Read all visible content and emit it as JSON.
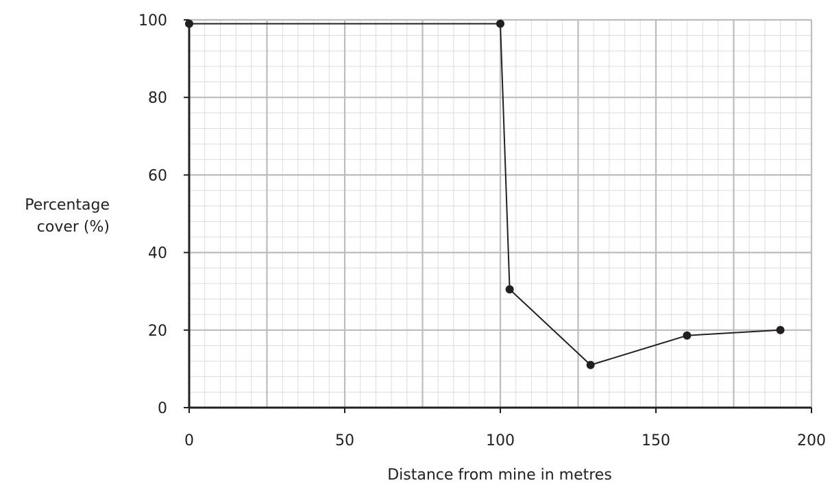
{
  "chart_data": {
    "type": "line",
    "title": "",
    "xlabel": "Distance from mine in metres",
    "ylabel_lines": [
      "Percentage",
      "cover (%)"
    ],
    "xlim": [
      0,
      200
    ],
    "ylim": [
      0,
      100
    ],
    "x_ticks": [
      0,
      50,
      100,
      150,
      200
    ],
    "y_ticks": [
      0,
      20,
      40,
      60,
      80,
      100
    ],
    "grid": true,
    "grid_major_x": 25,
    "grid_major_y": 20,
    "grid_minor_x": 5,
    "grid_minor_y": 4,
    "series": [
      {
        "points": [
          {
            "x": 0,
            "y": 99
          },
          {
            "x": 100,
            "y": 99
          },
          {
            "x": 103,
            "y": 30.5
          },
          {
            "x": 129,
            "y": 11
          },
          {
            "x": 160,
            "y": 18.6
          },
          {
            "x": 190,
            "y": 20
          }
        ]
      }
    ],
    "colors": {
      "line": "#231f20",
      "axis": "#231f20",
      "grid_major": "#bcbcbe",
      "grid_minor": "#dcdcde"
    }
  }
}
